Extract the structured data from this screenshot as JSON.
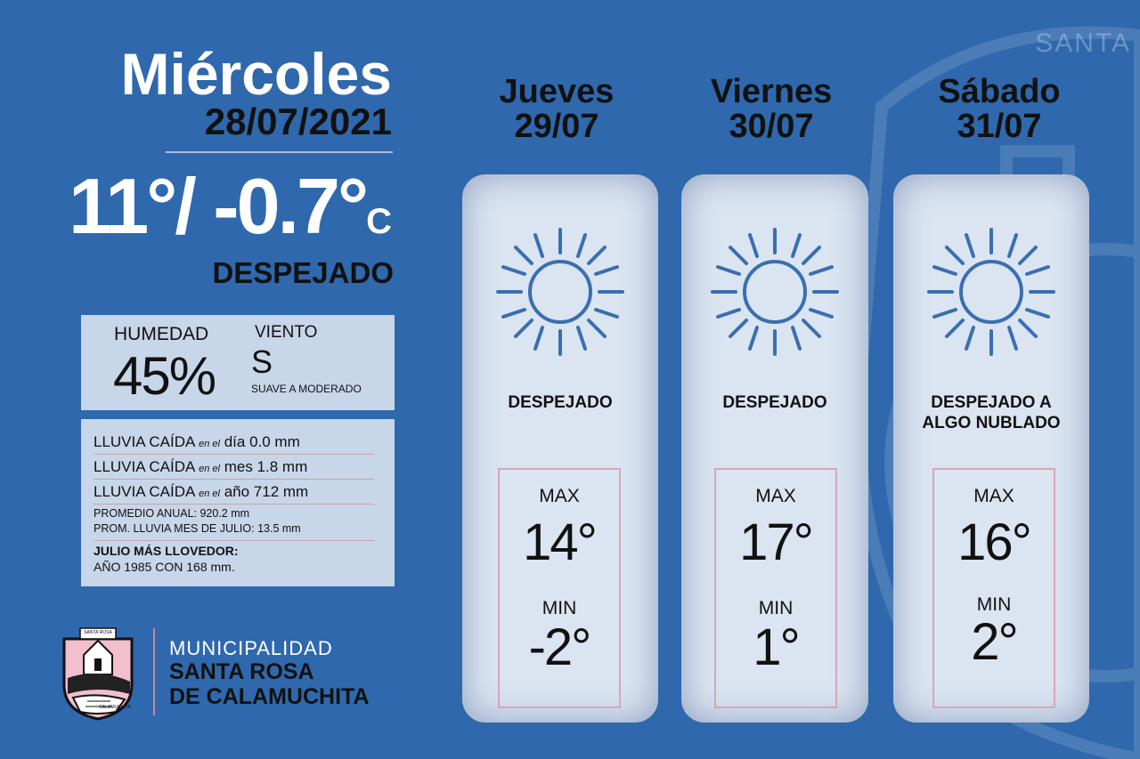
{
  "background": {
    "color": "#2f68ac",
    "emblem_text": "SANTA"
  },
  "today": {
    "day": "Miércoles",
    "date": "28/07/2021",
    "temperature": "11°/ -0.7°",
    "unit": "C",
    "condition": "DESPEJADO"
  },
  "humidity": {
    "label": "HUMEDAD",
    "value": "45%"
  },
  "wind": {
    "label": "VIENTO",
    "value": "S",
    "description": "SUAVE A MODERADO"
  },
  "rain": {
    "rows": [
      {
        "label": "LLUVIA CAÍDA",
        "pre": "en el",
        "value": "día 0.0 mm"
      },
      {
        "label": "LLUVIA CAÍDA",
        "pre": "en el",
        "value": "mes 1.8 mm"
      },
      {
        "label": "LLUVIA CAÍDA",
        "pre": "en el",
        "value": "año 712 mm"
      }
    ],
    "annual_avg": "PROMEDIO ANUAL: 920.2 mm",
    "july_avg": "PROM. LLUVIA MES DE JULIO: 13.5 mm",
    "rainiest_title": "JULIO MÁS LLOVEDOR:",
    "rainiest_value": "AÑO 1985 CON 168 mm."
  },
  "logo": {
    "line1": "MUNICIPALIDAD",
    "line2": "SANTA ROSA",
    "line3": "DE CALAMUCHITA",
    "badge_top": "SANTA ROSA",
    "badge_bottom": "CALAMUCHITA"
  },
  "forecast": [
    {
      "day": "Jueves",
      "date": "29/07",
      "icon": "sun-icon",
      "condition": "DESPEJADO",
      "max_label": "MAX",
      "max": "14°",
      "min_label": "MIN",
      "min": "-2°"
    },
    {
      "day": "Viernes",
      "date": "30/07",
      "icon": "sun-icon",
      "condition": "DESPEJADO",
      "max_label": "MAX",
      "max": "17°",
      "min_label": "MIN",
      "min": "1°"
    },
    {
      "day": "Sábado",
      "date": "31/07",
      "icon": "sun-icon",
      "condition": "DESPEJADO A ALGO NUBLADO",
      "max_label": "MAX",
      "max": "16°",
      "min_label": "MIN",
      "min": "2°"
    }
  ],
  "colors": {
    "sun": "#3a6fb0",
    "card": "#dbe5f2",
    "box": "#c8d6ea",
    "accent_line": "#d7a7b3"
  }
}
